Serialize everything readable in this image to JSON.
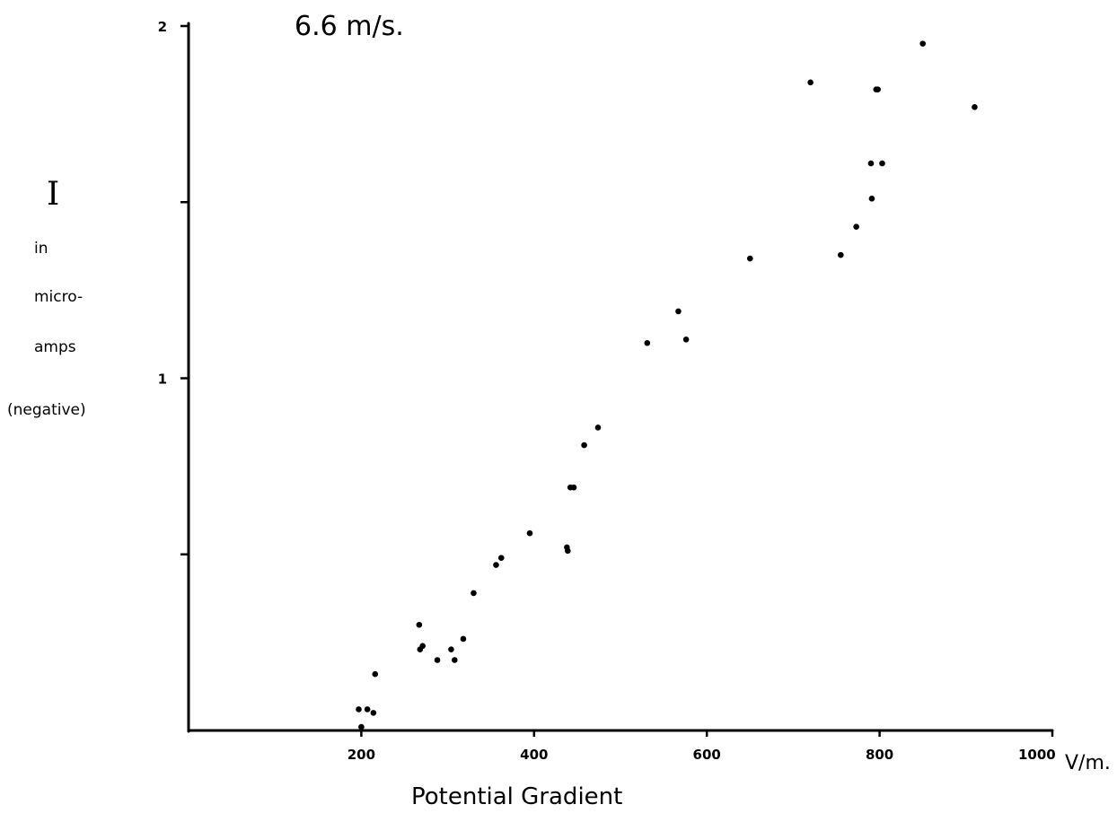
{
  "chart_data": {
    "type": "scatter",
    "title": "6.6 m/s.",
    "xlabel": "Potential Gradient",
    "x_unit": "V/m.",
    "ylabel_lines": [
      "I",
      "in",
      "micro-",
      "amps",
      "(negative)"
    ],
    "xlim": [
      0,
      1000
    ],
    "ylim": [
      0,
      2
    ],
    "x_ticks": [
      200,
      400,
      600,
      800,
      1000
    ],
    "x_tick_labels": [
      "200",
      "400",
      "600",
      "800",
      "1000"
    ],
    "y_ticks": [
      0.5,
      1,
      1.5,
      2
    ],
    "y_tick_labels": [
      "",
      "1",
      "",
      "2"
    ],
    "grid": false,
    "series": [
      {
        "x": [
          197,
          207,
          214,
          200,
          216,
          267,
          268,
          271,
          288,
          304,
          308,
          318,
          330,
          356,
          362,
          395,
          438,
          439,
          442,
          446,
          458,
          474,
          531,
          567,
          576,
          650,
          720,
          755,
          773,
          790,
          791,
          796,
          798,
          803,
          850,
          910
        ],
        "y": [
          0.06,
          0.06,
          0.05,
          0.01,
          0.16,
          0.3,
          0.23,
          0.24,
          0.2,
          0.23,
          0.2,
          0.26,
          0.39,
          0.47,
          0.49,
          0.56,
          0.52,
          0.51,
          0.69,
          0.69,
          0.81,
          0.86,
          1.1,
          1.19,
          1.11,
          1.34,
          1.84,
          1.35,
          1.43,
          1.61,
          1.51,
          1.82,
          1.82,
          1.61,
          1.95,
          1.77
        ],
        "marker": "dot",
        "color": "#000000"
      }
    ]
  }
}
